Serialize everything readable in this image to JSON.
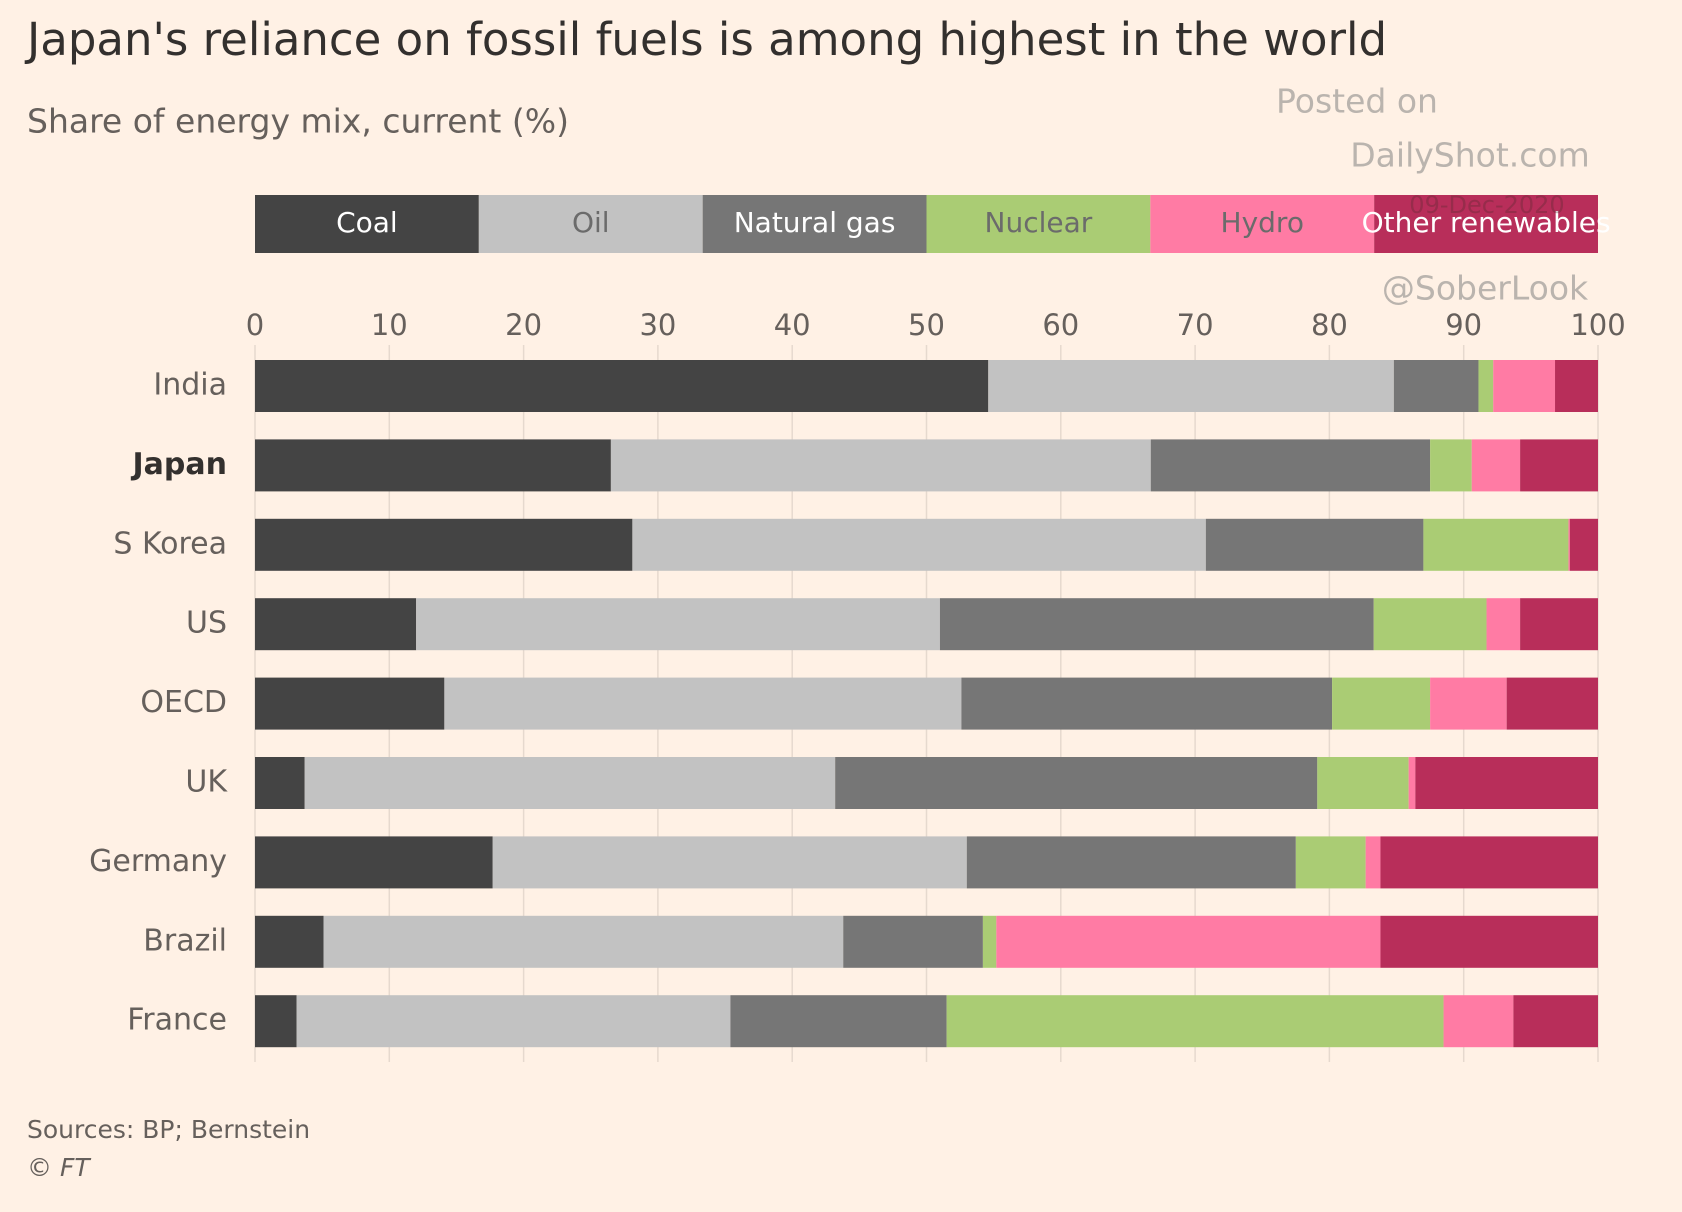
{
  "chart_data": {
    "type": "stacked-bar-horizontal",
    "title": "Japan's reliance on fossil fuels is among highest in the world",
    "subtitle": "Share of energy mix, current (%)",
    "categories": [
      "India",
      "Japan",
      "S Korea",
      "US",
      "OECD",
      "UK",
      "Germany",
      "Brazil",
      "France"
    ],
    "series": [
      {
        "name": "Coal",
        "color": "#444444",
        "values": [
          54.6,
          26.5,
          28.1,
          12.0,
          14.1,
          3.7,
          17.7,
          5.1,
          3.1
        ]
      },
      {
        "name": "Oil",
        "color": "#c2c2c2",
        "values": [
          30.2,
          40.2,
          42.7,
          39.0,
          38.5,
          39.5,
          35.3,
          38.7,
          32.3
        ]
      },
      {
        "name": "Natural gas",
        "color": "#767676",
        "values": [
          6.3,
          20.8,
          16.2,
          32.3,
          27.6,
          35.9,
          24.5,
          10.4,
          16.1
        ]
      },
      {
        "name": "Nuclear",
        "color": "#aacc74",
        "values": [
          1.1,
          3.1,
          10.8,
          8.4,
          7.3,
          6.8,
          5.2,
          1.0,
          37.0
        ]
      },
      {
        "name": "Hydro",
        "color": "#ff7ba4",
        "values": [
          4.6,
          3.6,
          0.1,
          2.5,
          5.7,
          0.5,
          1.1,
          28.6,
          5.2
        ]
      },
      {
        "name": "Other renewables",
        "color": "#b82e5a",
        "values": [
          3.2,
          5.8,
          2.1,
          5.8,
          6.8,
          13.6,
          16.2,
          16.2,
          6.3
        ]
      }
    ],
    "xlim": [
      0,
      100
    ],
    "xticks": [
      0,
      10,
      20,
      30,
      40,
      50,
      60,
      70,
      80,
      90,
      100
    ],
    "grid": true,
    "watermark": [
      "Posted on",
      "DailyShot.com",
      "09-Dec-2020",
      "@SoberLook"
    ],
    "source": "Sources: BP; Bernstein",
    "credit": "© FT"
  }
}
